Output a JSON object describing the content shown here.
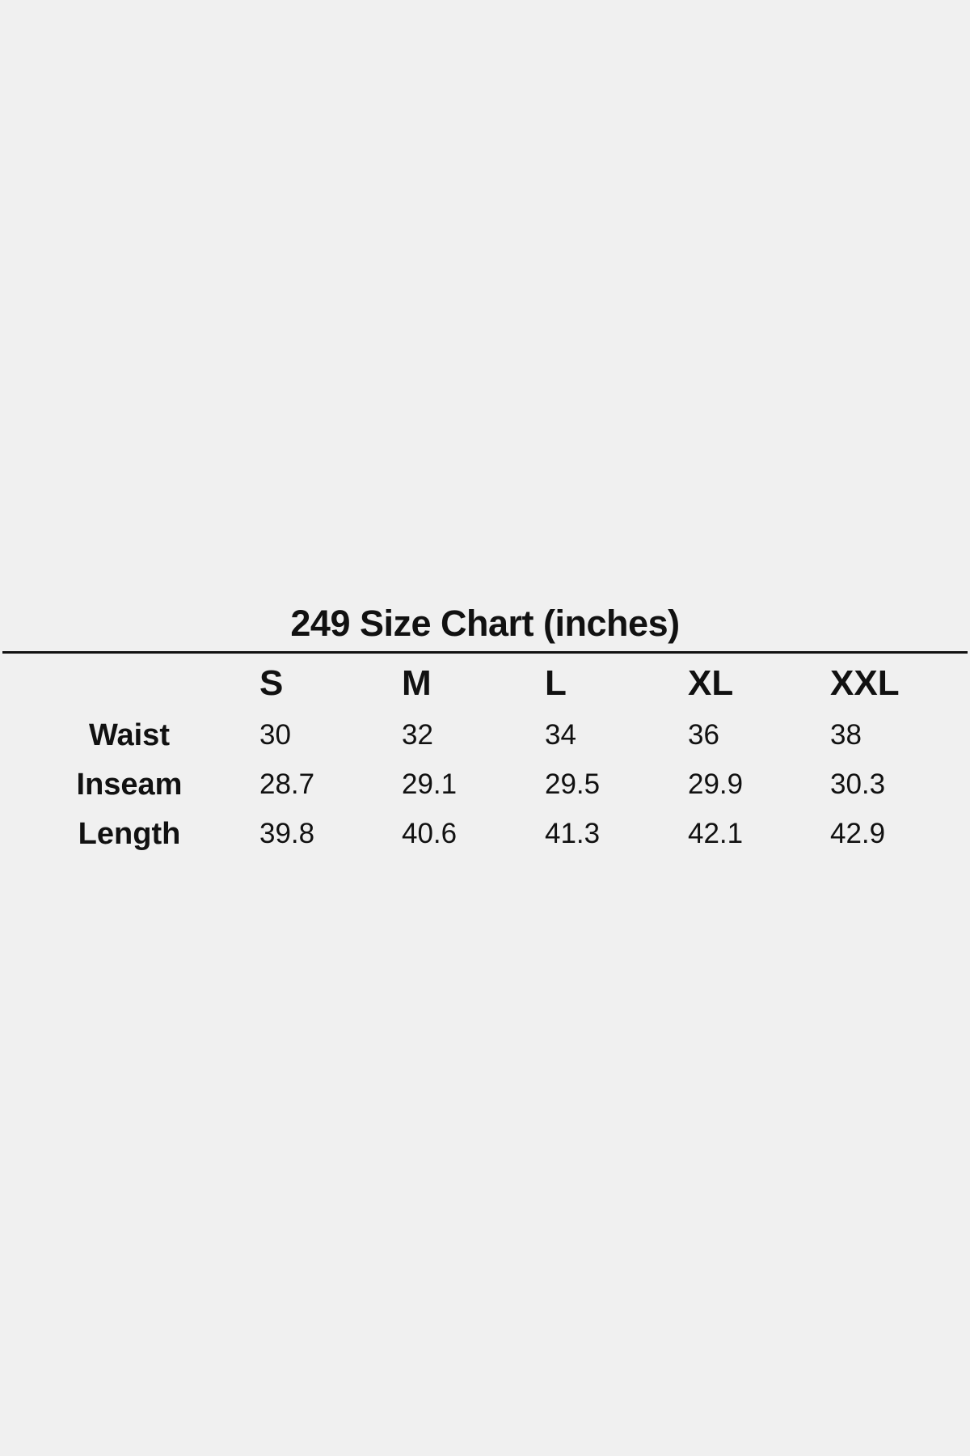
{
  "title": "249 Size Chart (inches)",
  "table": {
    "columns": [
      "S",
      "M",
      "L",
      "XL",
      "XXL"
    ],
    "rows": [
      {
        "label": "Waist",
        "values": [
          "30",
          "32",
          "34",
          "36",
          "38"
        ]
      },
      {
        "label": "Inseam",
        "values": [
          "28.7",
          "29.1",
          "29.5",
          "29.9",
          "30.3"
        ]
      },
      {
        "label": "Length",
        "values": [
          "39.8",
          "40.6",
          "41.3",
          "42.1",
          "42.9"
        ]
      }
    ]
  }
}
